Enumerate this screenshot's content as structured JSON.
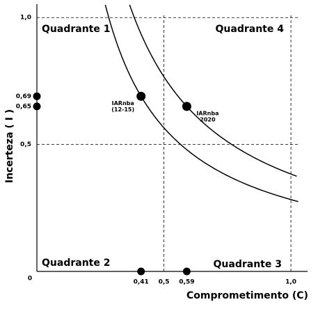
{
  "chart_data": {
    "type": "scatter",
    "x_label": "Comprometimento (C)",
    "y_label": "Incerteza ( I )",
    "quadrants": [
      "Quadrante 1",
      "Quadrante 4",
      "Quadrante 2",
      "Quadrante 3"
    ],
    "x": [
      0,
      0,
      0.41,
      0.59,
      0.41,
      0.59
    ],
    "values": [
      0.69,
      0.65,
      0,
      0,
      0.69,
      0.65
    ],
    "point_labels": [
      null,
      null,
      null,
      null,
      [
        "IARnba",
        "(12-15)"
      ],
      [
        "IARnba",
        "2020"
      ]
    ],
    "color": "#000000",
    "xlim": [
      0,
      1.06
    ],
    "ylim": [
      0,
      1.05
    ],
    "xticks": [
      0,
      {
        "value": 0.41,
        "label": "0,41"
      },
      {
        "value": 0.5,
        "label": "0,5"
      },
      {
        "value": 0.59,
        "label": "0,59"
      },
      {
        "value": 1,
        "label": "1,0"
      }
    ],
    "yticks": [
      {
        "value": 0.5,
        "label": "0,5"
      },
      {
        "value": 0.65,
        "label": "0,65"
      },
      {
        "value": 0.69,
        "label": "0,69"
      },
      {
        "value": 1,
        "label": "1,0"
      }
    ],
    "xgrid": [
      0.5,
      1
    ],
    "ygrid": [
      0.5,
      1
    ]
  }
}
